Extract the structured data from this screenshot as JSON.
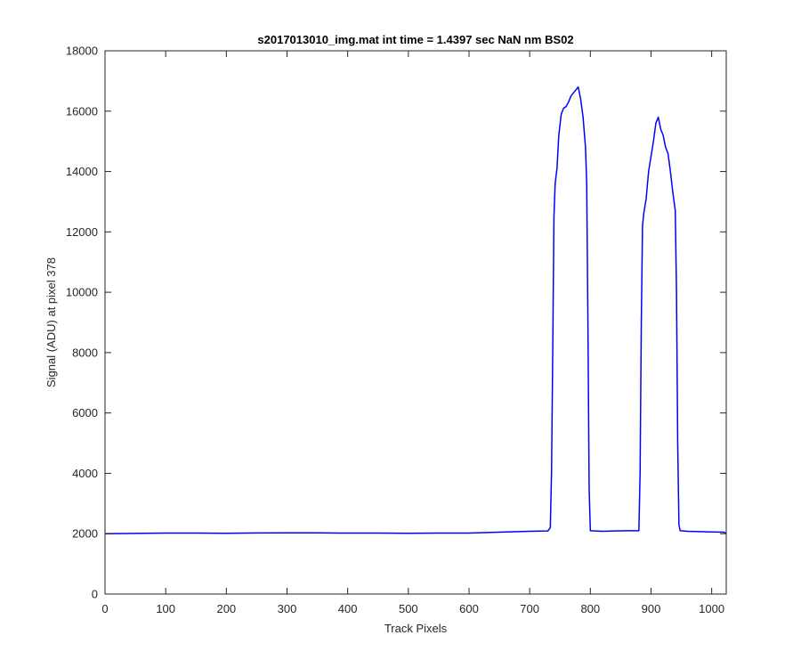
{
  "chart_data": {
    "type": "line",
    "title": "s2017013010_img.mat int time = 1.4397 sec  NaN nm BS02",
    "xlabel": "Track Pixels",
    "ylabel": "Signal (ADU) at pixel 378",
    "xlim": [
      0,
      1024
    ],
    "ylim": [
      0,
      18000
    ],
    "xticks": [
      0,
      100,
      200,
      300,
      400,
      500,
      600,
      700,
      800,
      900,
      1000
    ],
    "yticks": [
      0,
      2000,
      4000,
      6000,
      8000,
      10000,
      12000,
      14000,
      16000,
      18000
    ],
    "grid": false,
    "series": [
      {
        "color": "#0000ff",
        "x": [
          0,
          50,
          100,
          150,
          200,
          250,
          300,
          350,
          400,
          450,
          500,
          550,
          600,
          650,
          700,
          730,
          734,
          736,
          738,
          740,
          742,
          745,
          748,
          752,
          756,
          760,
          764,
          768,
          772,
          776,
          780,
          784,
          788,
          790,
          792,
          794,
          796,
          798,
          800,
          820,
          840,
          860,
          880,
          882,
          884,
          886,
          888,
          892,
          896,
          900,
          904,
          908,
          912,
          916,
          920,
          924,
          928,
          932,
          936,
          940,
          942,
          944,
          946,
          948,
          960,
          980,
          1000,
          1020,
          1024
        ],
        "y": [
          2000,
          2010,
          2020,
          2020,
          2015,
          2025,
          2030,
          2030,
          2020,
          2020,
          2015,
          2020,
          2020,
          2050,
          2080,
          2090,
          2200,
          4000,
          8000,
          12500,
          13600,
          14100,
          15200,
          15900,
          16100,
          16150,
          16300,
          16500,
          16600,
          16700,
          16800,
          16400,
          15800,
          15300,
          14800,
          13600,
          9000,
          3500,
          2100,
          2080,
          2090,
          2100,
          2100,
          4000,
          9000,
          12200,
          12600,
          13100,
          14000,
          14500,
          15000,
          15600,
          15800,
          15400,
          15200,
          14800,
          14600,
          14000,
          13300,
          12700,
          10000,
          5000,
          2300,
          2100,
          2080,
          2070,
          2060,
          2050,
          2020
        ]
      }
    ]
  }
}
